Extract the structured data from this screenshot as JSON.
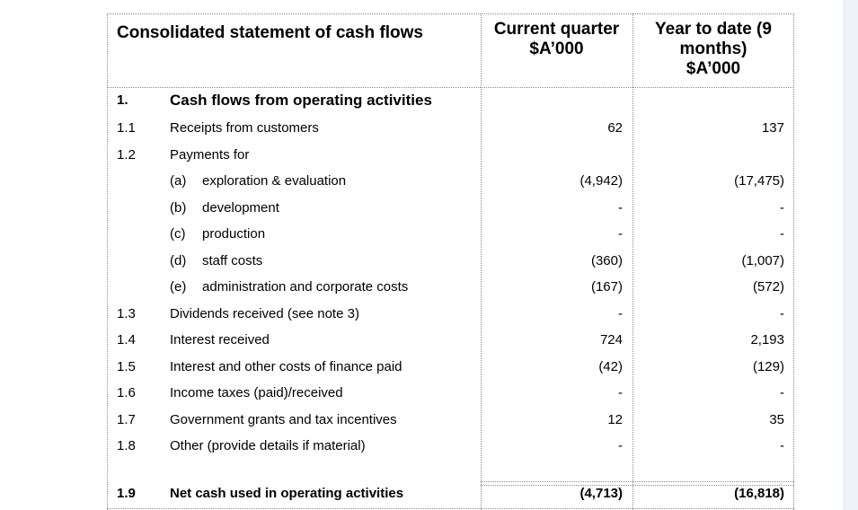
{
  "header": {
    "title": "Consolidated statement of cash flows",
    "current_quarter": [
      "Current quarter",
      "$A’000"
    ],
    "year_to_date": [
      "Year to date (9",
      "months)",
      "$A’000"
    ]
  },
  "section": {
    "num": "1.",
    "label": "Cash flows from operating activities"
  },
  "rows": [
    {
      "num": "1.1",
      "letter": "",
      "label": "Receipts from customers",
      "current": "62",
      "ytd": "137"
    },
    {
      "num": "1.2",
      "letter": "",
      "label": "Payments for",
      "current": "",
      "ytd": ""
    },
    {
      "num": "",
      "letter": "(a)",
      "label": "exploration & evaluation",
      "current": "(4,942)",
      "ytd": "(17,475)"
    },
    {
      "num": "",
      "letter": "(b)",
      "label": "development",
      "current": "-",
      "ytd": "-"
    },
    {
      "num": "",
      "letter": "(c)",
      "label": "production",
      "current": "-",
      "ytd": "-"
    },
    {
      "num": "",
      "letter": "(d)",
      "label": "staff costs",
      "current": "(360)",
      "ytd": "(1,007)"
    },
    {
      "num": "",
      "letter": "(e)",
      "label": "administration and corporate costs",
      "current": "(167)",
      "ytd": "(572)"
    },
    {
      "num": "1.3",
      "letter": "",
      "label": "Dividends received (see note 3)",
      "current": "-",
      "ytd": "-"
    },
    {
      "num": "1.4",
      "letter": "",
      "label": "Interest received",
      "current": "724",
      "ytd": "2,193"
    },
    {
      "num": "1.5",
      "letter": "",
      "label": "Interest and other costs of finance paid",
      "current": "(42)",
      "ytd": "(129)"
    },
    {
      "num": "1.6",
      "letter": "",
      "label": "Income taxes (paid)/received",
      "current": "-",
      "ytd": "-"
    },
    {
      "num": "1.7",
      "letter": "",
      "label": "Government grants and tax incentives",
      "current": "12",
      "ytd": "35"
    },
    {
      "num": "1.8",
      "letter": "",
      "label": "Other (provide details if material)",
      "current": "-",
      "ytd": "-"
    }
  ],
  "total": {
    "num": "1.9",
    "label": "Net cash used in operating activities",
    "current": "(4,713)",
    "ytd": "(16,818)"
  }
}
